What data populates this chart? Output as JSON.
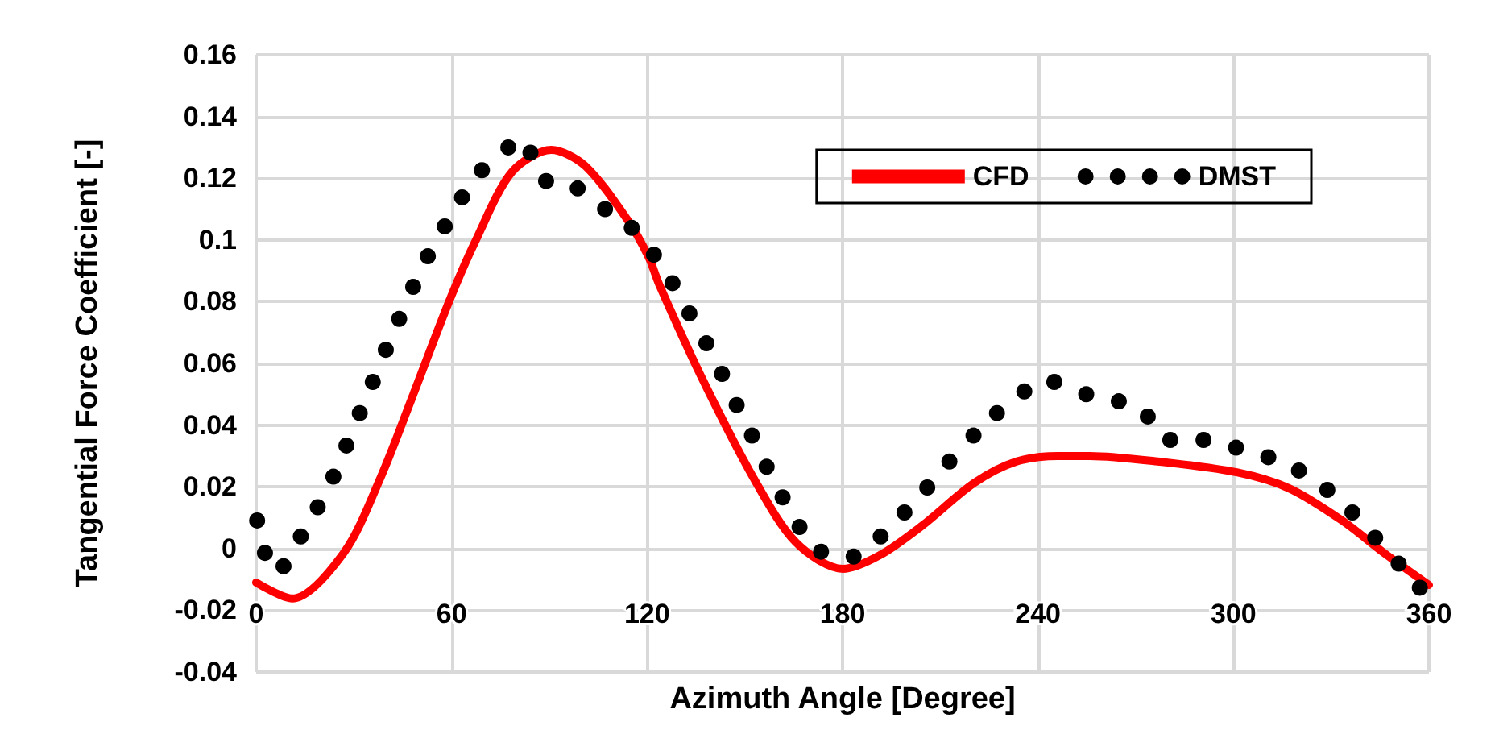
{
  "chart_data": {
    "type": "line",
    "xlabel": "Azimuth Angle [Degree]",
    "ylabel": "Tangential Force Coefficient [-]",
    "xlim": [
      0,
      360
    ],
    "xticks": [
      0,
      60,
      120,
      180,
      240,
      300,
      360
    ],
    "ylim": [
      -0.04,
      0.16
    ],
    "yticks": [
      -0.04,
      -0.02,
      0,
      0.02,
      0.04,
      0.06,
      0.08,
      0.1,
      0.12,
      0.14,
      0.16
    ],
    "grid": true,
    "legend": "top right",
    "series": [
      {
        "name": "CFD",
        "color": "#ff0000",
        "marker": "none",
        "line_style": "solid",
        "x": [
          0,
          11.1,
          26.9,
          38.2,
          47.9,
          59.2,
          67.3,
          78.5,
          90.6,
          101,
          114,
          120.5,
          123.7,
          136.5,
          152.6,
          165.6,
          180.1,
          191.4,
          204.3,
          220.5,
          233.4,
          246.2,
          255.9,
          276.8,
          301,
          317.1,
          333.3,
          346.2,
          360
        ],
        "values": [
          -0.011,
          -0.0162,
          -0.0014,
          0.023,
          0.049,
          0.08,
          0.0996,
          0.122,
          0.1292,
          0.124,
          0.1065,
          0.0944,
          0.0856,
          0.056,
          0.023,
          0.0021,
          -0.0066,
          -0.0022,
          0.0073,
          0.0213,
          0.0282,
          0.03,
          0.03,
          0.0282,
          0.0247,
          0.0195,
          0.0091,
          -0.0014,
          -0.0118
        ]
      },
      {
        "name": "DMST",
        "type": "scatter",
        "color": "#000000",
        "marker": "circle",
        "x": [
          0.3,
          2.7,
          8.4,
          13.7,
          18.9,
          23.7,
          27.7,
          31.8,
          35.8,
          39.8,
          43.9,
          48.2,
          52.7,
          57.9,
          63.2,
          69.3,
          77.4,
          84.2,
          89,
          98.7,
          107.1,
          115.3,
          122.1,
          127.8,
          133,
          138.2,
          143,
          147.5,
          152.2,
          156.7,
          161.6,
          166.8,
          173.4,
          183.4,
          191.7,
          199,
          206,
          212.8,
          220.2,
          227.4,
          235.8,
          245,
          254.8,
          264.8,
          273.7,
          280.6,
          290.8,
          300.8,
          310.7,
          320.1,
          328.8,
          336.5,
          343.5,
          350.7,
          357.2
        ],
        "values": [
          0.0091,
          -0.0014,
          -0.0057,
          0.0039,
          0.0134,
          0.0233,
          0.0334,
          0.0439,
          0.054,
          0.0644,
          0.0744,
          0.0848,
          0.0947,
          0.1044,
          0.1138,
          0.1226,
          0.13,
          0.1283,
          0.1191,
          0.1167,
          0.11,
          0.1039,
          0.0952,
          0.086,
          0.0762,
          0.0665,
          0.0566,
          0.0465,
          0.0366,
          0.0265,
          0.0166,
          0.007,
          -0.001,
          -0.0026,
          0.0039,
          0.0117,
          0.0198,
          0.0282,
          0.0366,
          0.0439,
          0.0509,
          0.054,
          0.05,
          0.0477,
          0.0428,
          0.0352,
          0.0352,
          0.0327,
          0.0296,
          0.0253,
          0.019,
          0.0117,
          0.0035,
          -0.0049,
          -0.0127
        ]
      }
    ]
  }
}
